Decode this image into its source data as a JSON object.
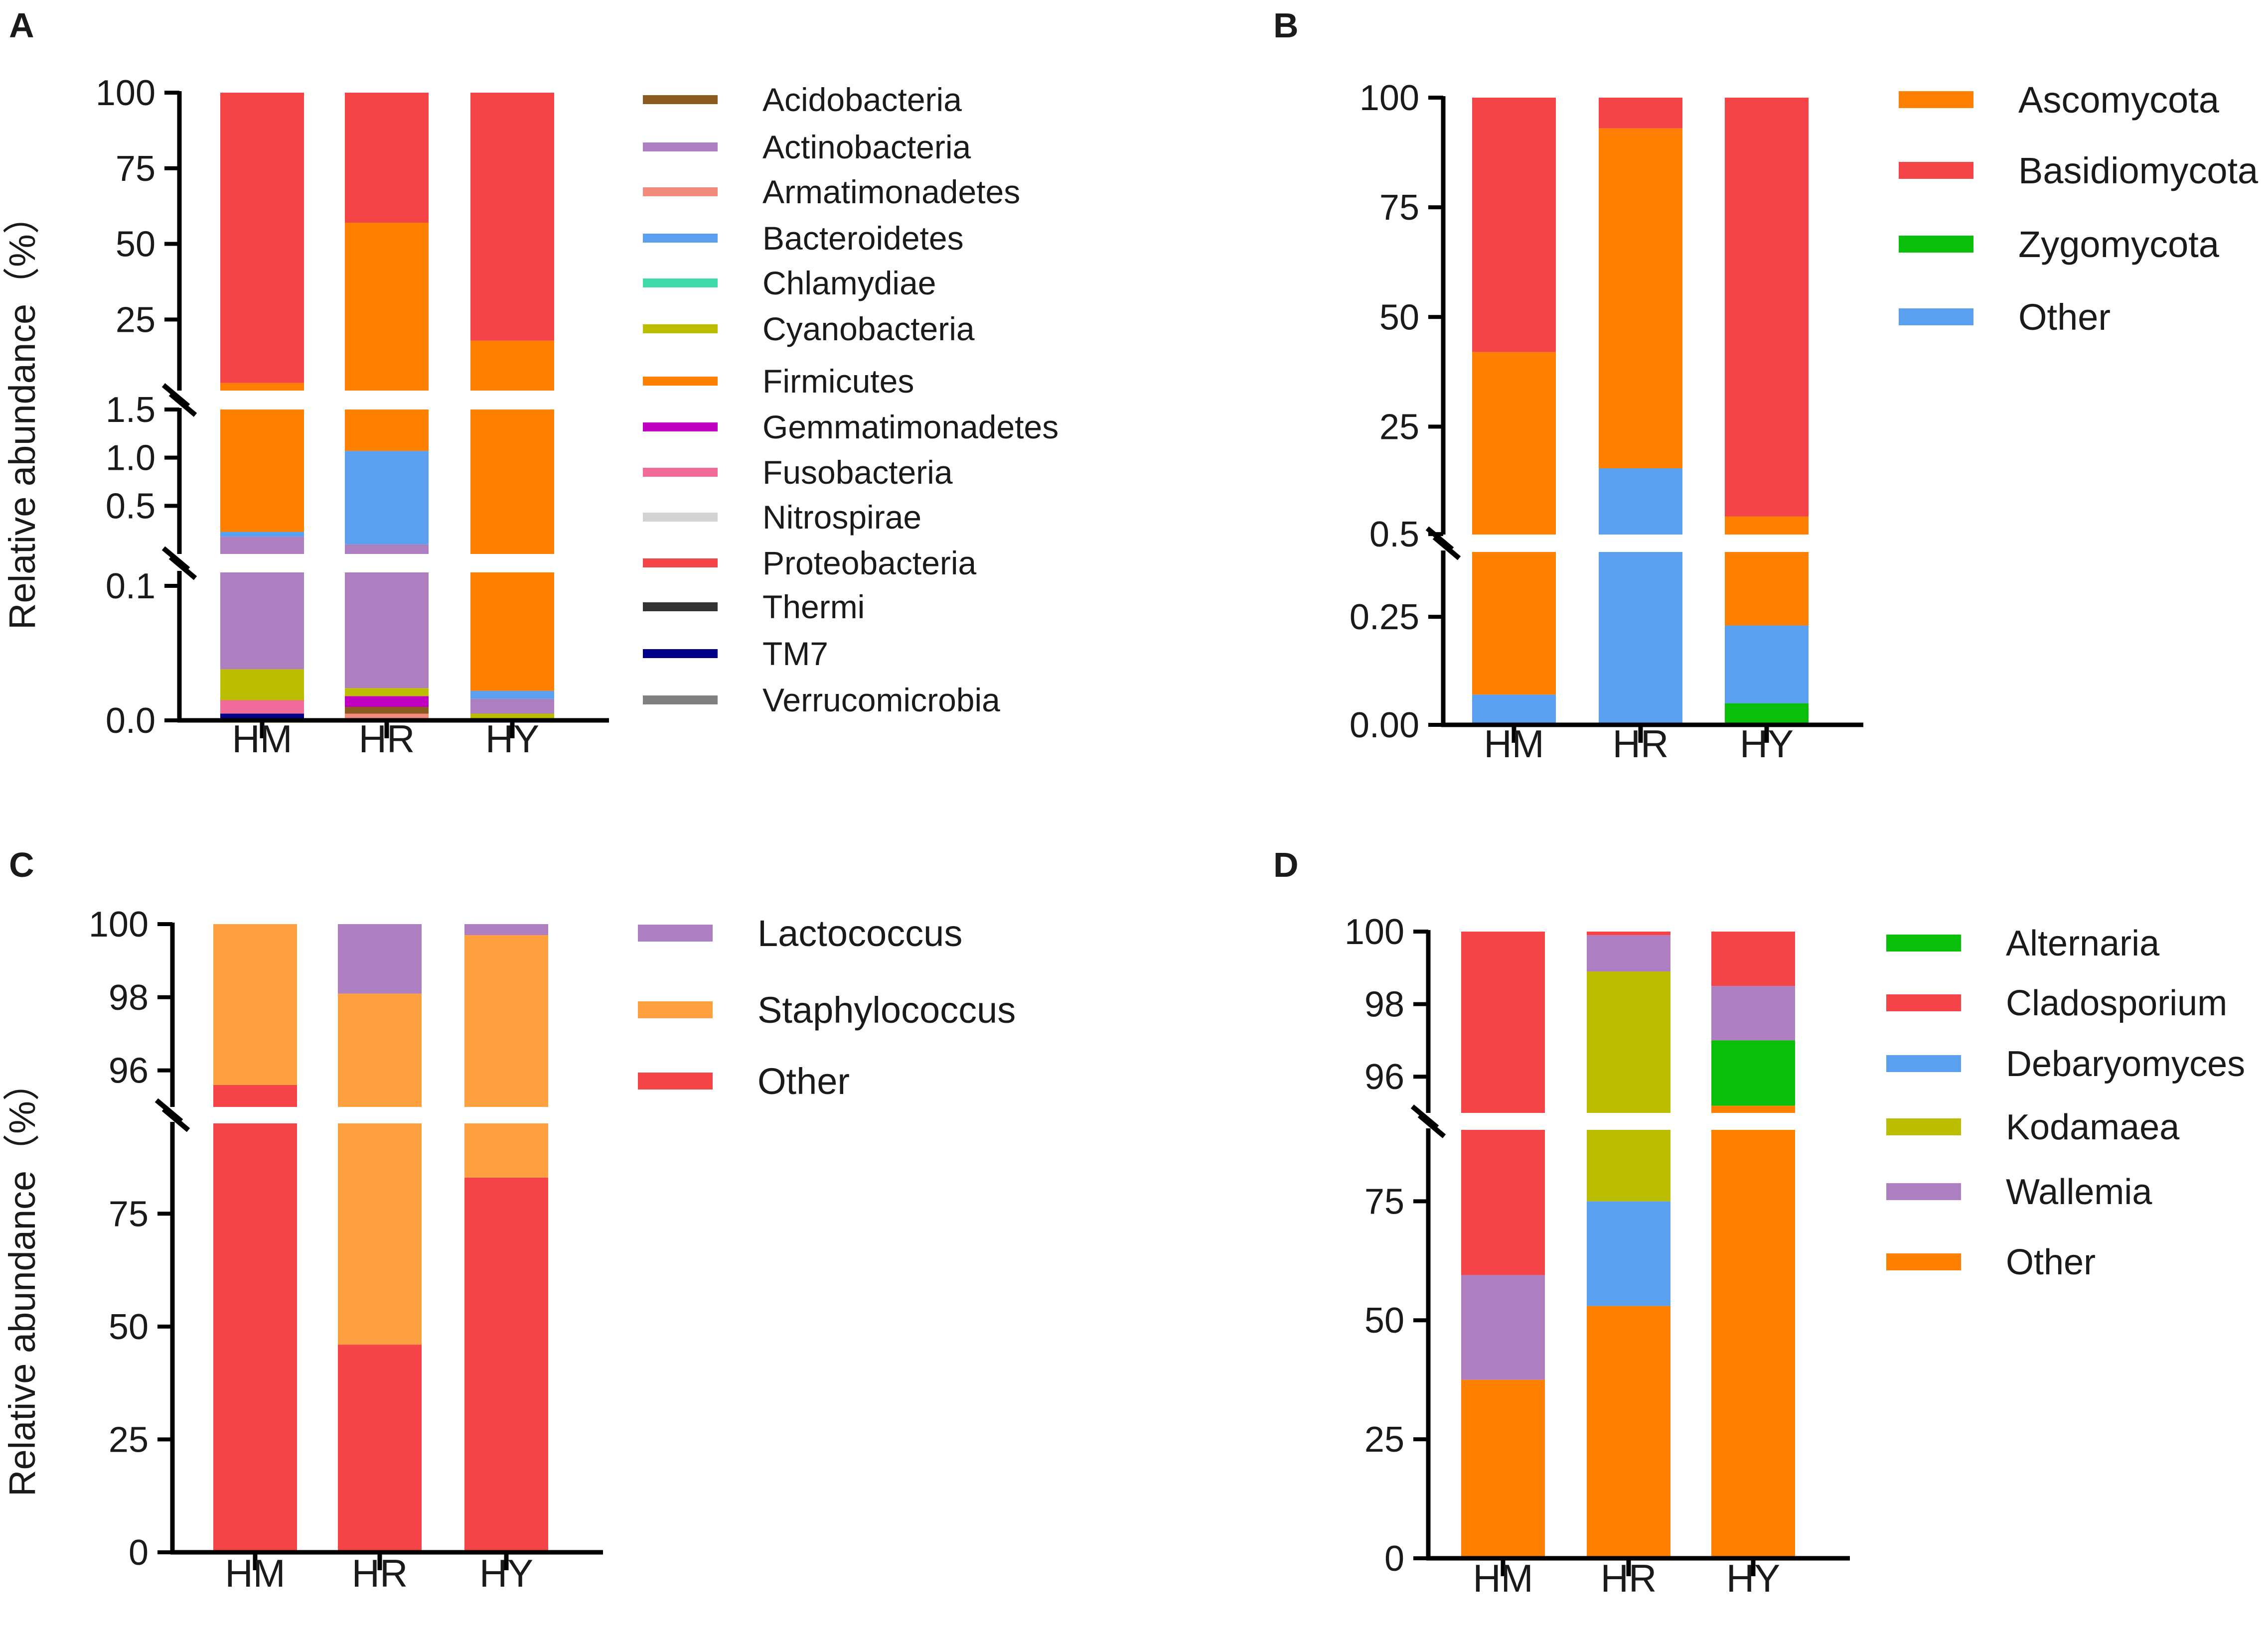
{
  "chart_data": [
    {
      "panel": "A",
      "type": "bar",
      "stacked": true,
      "ylabel": "Relative abundance（%）",
      "categories": [
        "HM",
        "HR",
        "HY"
      ],
      "y_segments": [
        {
          "range": [
            0,
            0.11
          ],
          "ticks": [
            0.0,
            0.1
          ],
          "tick_labels": [
            "0.0",
            "0.1"
          ]
        },
        {
          "range": [
            0,
            1.5
          ],
          "ticks": [
            0.5,
            1.0,
            1.5
          ],
          "tick_labels": [
            "0.5",
            "1.0",
            "1.5"
          ]
        },
        {
          "range": [
            1.5,
            100
          ],
          "ticks": [
            25,
            50,
            75,
            100
          ],
          "tick_labels": [
            "25",
            "50",
            "75",
            "100"
          ]
        }
      ],
      "legend": [
        "Acidobacteria",
        "Actinobacteria",
        "Armatimonadetes",
        "Bacteroidetes",
        "Chlamydiae",
        "Cyanobacteria",
        "Firmicutes",
        "Gemmatimonadetes",
        "Fusobacteria",
        "Nitrospirae",
        "Proteobacteria",
        "Thermi",
        "TM7",
        "Verrucomicrobia"
      ],
      "colors": {
        "Acidobacteria": "#8B5A1E",
        "Actinobacteria": "#AE7FC0",
        "Armatimonadetes": "#F28A7E",
        "Bacteroidetes": "#5AA0EE",
        "Chlamydiae": "#3ED9A8",
        "Cyanobacteria": "#BDBD00",
        "Firmicutes": "#FF8000",
        "Gemmatimonadetes": "#C000C0",
        "Fusobacteria": "#F06A9A",
        "Nitrospirae": "#D3D3D3",
        "Proteobacteria": "#F54447",
        "Thermi": "#333333",
        "TM7": "#00008B",
        "Verrucomicrobia": "#808080"
      },
      "bars": [
        {
          "category": "HM",
          "segments": [
            {
              "taxon": "TM7",
              "seg": 0,
              "from": 0.0,
              "to": 0.005
            },
            {
              "taxon": "Fusobacteria",
              "seg": 0,
              "from": 0.005,
              "to": 0.015
            },
            {
              "taxon": "Cyanobacteria",
              "seg": 0,
              "from": 0.015,
              "to": 0.038
            },
            {
              "taxon": "Actinobacteria",
              "seg": 0,
              "from": 0.038,
              "to": 0.11
            },
            {
              "taxon": "Actinobacteria",
              "seg": 1,
              "from": 0.0,
              "to": 0.18
            },
            {
              "taxon": "Bacteroidetes",
              "seg": 1,
              "from": 0.18,
              "to": 0.23
            },
            {
              "taxon": "Firmicutes",
              "seg": 1,
              "from": 0.23,
              "to": 1.5
            },
            {
              "taxon": "Firmicutes",
              "seg": 2,
              "from": 1.5,
              "to": 4.0
            },
            {
              "taxon": "Proteobacteria",
              "seg": 2,
              "from": 4.0,
              "to": 100
            }
          ]
        },
        {
          "category": "HR",
          "segments": [
            {
              "taxon": "Armatimonadetes",
              "seg": 0,
              "from": 0.0,
              "to": 0.005
            },
            {
              "taxon": "Acidobacteria",
              "seg": 0,
              "from": 0.005,
              "to": 0.01
            },
            {
              "taxon": "Gemmatimonadetes",
              "seg": 0,
              "from": 0.01,
              "to": 0.018
            },
            {
              "taxon": "Cyanobacteria",
              "seg": 0,
              "from": 0.018,
              "to": 0.024
            },
            {
              "taxon": "Actinobacteria",
              "seg": 0,
              "from": 0.024,
              "to": 0.11
            },
            {
              "taxon": "Actinobacteria",
              "seg": 1,
              "from": 0.0,
              "to": 0.1
            },
            {
              "taxon": "Bacteroidetes",
              "seg": 1,
              "from": 0.1,
              "to": 1.07
            },
            {
              "taxon": "Firmicutes",
              "seg": 1,
              "from": 1.07,
              "to": 1.5
            },
            {
              "taxon": "Firmicutes",
              "seg": 2,
              "from": 1.5,
              "to": 57
            },
            {
              "taxon": "Proteobacteria",
              "seg": 2,
              "from": 57,
              "to": 100
            }
          ]
        },
        {
          "category": "HY",
          "segments": [
            {
              "taxon": "Cyanobacteria",
              "seg": 0,
              "from": 0.0,
              "to": 0.005
            },
            {
              "taxon": "Actinobacteria",
              "seg": 0,
              "from": 0.005,
              "to": 0.016
            },
            {
              "taxon": "Bacteroidetes",
              "seg": 0,
              "from": 0.016,
              "to": 0.022
            },
            {
              "taxon": "Firmicutes",
              "seg": 0,
              "from": 0.022,
              "to": 0.11
            },
            {
              "taxon": "Firmicutes",
              "seg": 1,
              "from": 0.0,
              "to": 1.5
            },
            {
              "taxon": "Firmicutes",
              "seg": 2,
              "from": 1.5,
              "to": 18
            },
            {
              "taxon": "Proteobacteria",
              "seg": 2,
              "from": 18,
              "to": 100
            }
          ]
        }
      ]
    },
    {
      "panel": "B",
      "type": "bar",
      "stacked": true,
      "ylabel": "",
      "categories": [
        "HM",
        "HR",
        "HY"
      ],
      "y_segments": [
        {
          "range": [
            0,
            0.4
          ],
          "ticks": [
            0.0,
            0.25
          ],
          "tick_labels": [
            "0.00",
            "0.25"
          ]
        },
        {
          "range": [
            0.4,
            100
          ],
          "ticks": [
            0.5,
            25,
            50,
            75,
            100
          ],
          "tick_labels": [
            "0.5",
            "25",
            "50",
            "75",
            "100"
          ]
        }
      ],
      "legend": [
        "Ascomycota",
        "Basidiomycota",
        "Zygomycota",
        "Other"
      ],
      "colors": {
        "Ascomycota": "#FF8000",
        "Basidiomycota": "#F54447",
        "Zygomycota": "#0ABF0A",
        "Other": "#5AA0EE"
      },
      "bars": [
        {
          "category": "HM",
          "segments": [
            {
              "taxon": "Other",
              "seg": 0,
              "from": 0.0,
              "to": 0.07
            },
            {
              "taxon": "Ascomycota",
              "seg": 0,
              "from": 0.07,
              "to": 0.4
            },
            {
              "taxon": "Ascomycota",
              "seg": 1,
              "from": 0.4,
              "to": 42
            },
            {
              "taxon": "Basidiomycota",
              "seg": 1,
              "from": 42,
              "to": 100
            }
          ]
        },
        {
          "category": "HR",
          "segments": [
            {
              "taxon": "Other",
              "seg": 0,
              "from": 0.0,
              "to": 0.4
            },
            {
              "taxon": "Other",
              "seg": 1,
              "from": 0.4,
              "to": 15.5
            },
            {
              "taxon": "Ascomycota",
              "seg": 1,
              "from": 15.5,
              "to": 93
            },
            {
              "taxon": "Basidiomycota",
              "seg": 1,
              "from": 93,
              "to": 100
            }
          ]
        },
        {
          "category": "HY",
          "segments": [
            {
              "taxon": "Zygomycota",
              "seg": 0,
              "from": 0.0,
              "to": 0.05
            },
            {
              "taxon": "Other",
              "seg": 0,
              "from": 0.05,
              "to": 0.23
            },
            {
              "taxon": "Ascomycota",
              "seg": 0,
              "from": 0.23,
              "to": 0.4
            },
            {
              "taxon": "Ascomycota",
              "seg": 1,
              "from": 0.4,
              "to": 4.5
            },
            {
              "taxon": "Basidiomycota",
              "seg": 1,
              "from": 4.5,
              "to": 100
            }
          ]
        }
      ]
    },
    {
      "panel": "C",
      "type": "bar",
      "stacked": true,
      "ylabel": "Relative abundance（%）",
      "categories": [
        "HM",
        "HR",
        "HY"
      ],
      "y_segments": [
        {
          "range": [
            0,
            95
          ],
          "ticks": [
            0,
            25,
            50,
            75
          ],
          "tick_labels": [
            "0",
            "25",
            "50",
            "75"
          ]
        },
        {
          "range": [
            95,
            100
          ],
          "ticks": [
            96,
            98,
            100
          ],
          "tick_labels": [
            "96",
            "98",
            "100"
          ]
        }
      ],
      "legend": [
        "Lactococcus",
        "Staphylococcus",
        "Other"
      ],
      "colors": {
        "Lactococcus": "#AE7FC0",
        "Staphylococcus": "#FFA040",
        "Other": "#F54447"
      },
      "bars": [
        {
          "category": "HM",
          "segments": [
            {
              "taxon": "Other",
              "seg": 0,
              "from": 0,
              "to": 95
            },
            {
              "taxon": "Other",
              "seg": 1,
              "from": 95,
              "to": 95.6
            },
            {
              "taxon": "Staphylococcus",
              "seg": 1,
              "from": 95.6,
              "to": 100
            }
          ]
        },
        {
          "category": "HR",
          "segments": [
            {
              "taxon": "Other",
              "seg": 0,
              "from": 0,
              "to": 46
            },
            {
              "taxon": "Staphylococcus",
              "seg": 0,
              "from": 46,
              "to": 95
            },
            {
              "taxon": "Staphylococcus",
              "seg": 1,
              "from": 95,
              "to": 98.1
            },
            {
              "taxon": "Lactococcus",
              "seg": 1,
              "from": 98.1,
              "to": 100
            }
          ]
        },
        {
          "category": "HY",
          "segments": [
            {
              "taxon": "Other",
              "seg": 0,
              "from": 0,
              "to": 83
            },
            {
              "taxon": "Staphylococcus",
              "seg": 0,
              "from": 83,
              "to": 95
            },
            {
              "taxon": "Staphylococcus",
              "seg": 1,
              "from": 95,
              "to": 99.7
            },
            {
              "taxon": "Lactococcus",
              "seg": 1,
              "from": 99.7,
              "to": 100
            }
          ]
        }
      ]
    },
    {
      "panel": "D",
      "type": "bar",
      "stacked": true,
      "ylabel": "",
      "categories": [
        "HM",
        "HR",
        "HY"
      ],
      "y_segments": [
        {
          "range": [
            0,
            90
          ],
          "ticks": [
            0,
            25,
            50,
            75
          ],
          "tick_labels": [
            "0",
            "25",
            "50",
            "75"
          ]
        },
        {
          "range": [
            95,
            100
          ],
          "ticks": [
            96,
            98,
            100
          ],
          "tick_labels": [
            "96",
            "98",
            "100"
          ]
        }
      ],
      "legend": [
        "Alternaria",
        "Cladosporium",
        "Debaryomyces",
        "Kodamaea",
        "Wallemia",
        "Other"
      ],
      "colors": {
        "Alternaria": "#0ABF0A",
        "Cladosporium": "#F54447",
        "Debaryomyces": "#5AA0EE",
        "Kodamaea": "#BDBD00",
        "Wallemia": "#AE7FC0",
        "Other": "#FF8000"
      },
      "bars": [
        {
          "category": "HM",
          "segments": [
            {
              "taxon": "Other",
              "seg": 0,
              "from": 0,
              "to": 37.5
            },
            {
              "taxon": "Wallemia",
              "seg": 0,
              "from": 37.5,
              "to": 59.5
            },
            {
              "taxon": "Cladosporium",
              "seg": 0,
              "from": 59.5,
              "to": 90
            },
            {
              "taxon": "Cladosporium",
              "seg": 1,
              "from": 95,
              "to": 100
            }
          ]
        },
        {
          "category": "HR",
          "segments": [
            {
              "taxon": "Other",
              "seg": 0,
              "from": 0,
              "to": 53
            },
            {
              "taxon": "Debaryomyces",
              "seg": 0,
              "from": 53,
              "to": 75
            },
            {
              "taxon": "Kodamaea",
              "seg": 0,
              "from": 75,
              "to": 90
            },
            {
              "taxon": "Kodamaea",
              "seg": 1,
              "from": 95,
              "to": 98.9
            },
            {
              "taxon": "Wallemia",
              "seg": 1,
              "from": 98.9,
              "to": 99.9
            },
            {
              "taxon": "Cladosporium",
              "seg": 1,
              "from": 99.9,
              "to": 100
            }
          ]
        },
        {
          "category": "HY",
          "segments": [
            {
              "taxon": "Other",
              "seg": 0,
              "from": 0,
              "to": 90
            },
            {
              "taxon": "Other",
              "seg": 1,
              "from": 95,
              "to": 95.2
            },
            {
              "taxon": "Alternaria",
              "seg": 1,
              "from": 95.2,
              "to": 97.0
            },
            {
              "taxon": "Wallemia",
              "seg": 1,
              "from": 97.0,
              "to": 98.5
            },
            {
              "taxon": "Cladosporium",
              "seg": 1,
              "from": 98.5,
              "to": 100
            }
          ]
        }
      ]
    }
  ]
}
